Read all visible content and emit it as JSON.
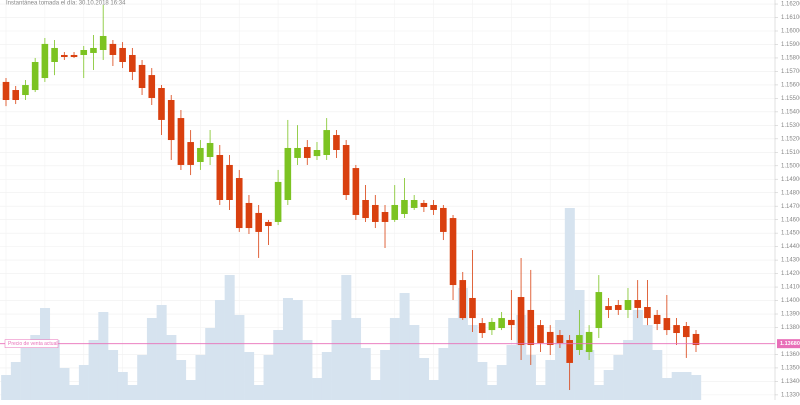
{
  "chart_data": {
    "type": "candlestick",
    "title": "Instantánea tomada el día: 30.10.2018 16:34",
    "up_color": "#7cc322",
    "down_color": "#d9400f",
    "volume_color": "#d6e3ef",
    "grid": true,
    "ylim": [
      1.13262,
      1.1623
    ],
    "volume_ylim": [
      0,
      200
    ],
    "yticks": [
      {
        "value": 1.162,
        "label": "1.16200"
      },
      {
        "value": 1.161,
        "label": "1.16100"
      },
      {
        "value": 1.16,
        "label": "1.16000"
      },
      {
        "value": 1.159,
        "label": "1.15900"
      },
      {
        "value": 1.158,
        "label": "1.15800"
      },
      {
        "value": 1.157,
        "label": "1.15700"
      },
      {
        "value": 1.156,
        "label": "1.15600"
      },
      {
        "value": 1.155,
        "label": "1.15500"
      },
      {
        "value": 1.154,
        "label": "1.15400"
      },
      {
        "value": 1.153,
        "label": "1.15300"
      },
      {
        "value": 1.152,
        "label": "1.15200"
      },
      {
        "value": 1.151,
        "label": "1.15100"
      },
      {
        "value": 1.15,
        "label": "1.15000"
      },
      {
        "value": 1.149,
        "label": "1.14900"
      },
      {
        "value": 1.148,
        "label": "1.14800"
      },
      {
        "value": 1.147,
        "label": "1.14700"
      },
      {
        "value": 1.146,
        "label": "1.14600"
      },
      {
        "value": 1.145,
        "label": "1.14500"
      },
      {
        "value": 1.144,
        "label": "1.14400"
      },
      {
        "value": 1.143,
        "label": "1.14300"
      },
      {
        "value": 1.142,
        "label": "1.14200"
      },
      {
        "value": 1.141,
        "label": "1.14100"
      },
      {
        "value": 1.14,
        "label": "1.14000"
      },
      {
        "value": 1.139,
        "label": "1.13900"
      },
      {
        "value": 1.138,
        "label": "1.13800"
      },
      {
        "value": 1.136,
        "label": "1.13600"
      },
      {
        "value": 1.135,
        "label": "1.13500"
      },
      {
        "value": 1.134,
        "label": "1.13400"
      },
      {
        "value": 1.133,
        "label": "1.13300"
      }
    ],
    "current_price": {
      "name": "Precio de venta actual",
      "value": 1.1368,
      "label": "1.13680",
      "color": "#e86fb8"
    },
    "open": [
      1.15622,
      1.15562,
      1.15525,
      1.15562,
      1.15651,
      1.1577,
      1.15822,
      1.15822,
      1.15822,
      1.15837,
      1.15859,
      1.15904,
      1.15874,
      1.15822,
      1.15748,
      1.15673,
      1.15577,
      1.15488,
      1.15354,
      1.15176,
      1.15028,
      1.15065,
      1.1508,
      1.15006,
      1.14909,
      1.14724,
      1.1465,
      1.14583,
      1.14583,
      1.14746,
      1.15058,
      1.15139,
      1.15072,
      1.1508,
      1.15228,
      1.15154,
      1.14983,
      1.14746,
      1.14709,
      1.14657,
      1.14598,
      1.14642,
      1.14687,
      1.14724,
      1.14709,
      1.14687,
      1.14612,
      1.14152,
      1.14019,
      1.13833,
      1.13781,
      1.13796,
      1.13856,
      1.14026,
      1.1393,
      1.13818,
      1.13767,
      1.13744,
      1.13707,
      1.13633,
      1.13618,
      1.13796,
      1.13959,
      1.13967,
      1.1393,
      1.14004,
      1.13952,
      1.13893,
      1.1387,
      1.13818,
      1.13811,
      1.13752
    ],
    "high": [
      1.15651,
      1.15592,
      1.15636,
      1.158,
      1.15948,
      1.15933,
      1.15844,
      1.15844,
      1.15889,
      1.1597,
      1.16193,
      1.15933,
      1.15918,
      1.15874,
      1.15785,
      1.15725,
      1.15599,
      1.15525,
      1.15414,
      1.15265,
      1.15191,
      1.15265,
      1.15154,
      1.1508,
      1.14969,
      1.14783,
      1.14709,
      1.14598,
      1.14969,
      1.1534,
      1.15302,
      1.15191,
      1.15176,
      1.15354,
      1.15265,
      1.15191,
      1.15006,
      1.14857,
      1.14783,
      1.14709,
      1.14857,
      1.14909,
      1.14783,
      1.14746,
      1.14746,
      1.14709,
      1.14635,
      1.14212,
      1.14375,
      1.1387,
      1.1387,
      1.13915,
      1.14078,
      1.14316,
      1.14227,
      1.13856,
      1.13818,
      1.13781,
      1.13744,
      1.1393,
      1.13818,
      1.14189,
      1.14019,
      1.14004,
      1.14093,
      1.14152,
      1.14152,
      1.1393,
      1.14041,
      1.1387,
      1.13841,
      1.13781
    ],
    "low": [
      1.15443,
      1.15458,
      1.15488,
      1.15547,
      1.15622,
      1.15673,
      1.15785,
      1.158,
      1.15651,
      1.15711,
      1.15785,
      1.1574,
      1.15725,
      1.15636,
      1.15525,
      1.15451,
      1.15228,
      1.15043,
      1.14969,
      1.14931,
      1.14969,
      1.15006,
      1.14709,
      1.14672,
      1.14509,
      1.14494,
      1.14316,
      1.14412,
      1.1456,
      1.14709,
      1.15006,
      1.15006,
      1.15043,
      1.15043,
      1.15058,
      1.14746,
      1.14598,
      1.14583,
      1.14538,
      1.1439,
      1.14583,
      1.14612,
      1.14672,
      1.14657,
      1.14635,
      1.14449,
      1.14004,
      1.13856,
      1.13767,
      1.13722,
      1.13744,
      1.13781,
      1.13707,
      1.13559,
      1.13522,
      1.13618,
      1.13596,
      1.13648,
      1.13336,
      1.13596,
      1.13559,
      1.13722,
      1.1387,
      1.13893,
      1.1387,
      1.1387,
      1.13818,
      1.13781,
      1.13744,
      1.1367,
      1.13574,
      1.13618
    ],
    "close": [
      1.15488,
      1.15488,
      1.15599,
      1.1577,
      1.15904,
      1.15874,
      1.15807,
      1.15807,
      1.15859,
      1.15874,
      1.15963,
      1.15822,
      1.1577,
      1.15696,
      1.15577,
      1.15503,
      1.1534,
      1.15191,
      1.15006,
      1.15006,
      1.15132,
      1.15169,
      1.14746,
      1.14746,
      1.14538,
      1.14538,
      1.14509,
      1.14553,
      1.1488,
      1.15132,
      1.15132,
      1.15058,
      1.15117,
      1.15265,
      1.15117,
      1.14783,
      1.14635,
      1.14612,
      1.14583,
      1.14583,
      1.14709,
      1.14746,
      1.14746,
      1.14694,
      1.14672,
      1.14509,
      1.14115,
      1.1387,
      1.1387,
      1.13759,
      1.13841,
      1.1387,
      1.13818,
      1.1367,
      1.1367,
      1.13685,
      1.1367,
      1.13685,
      1.13537,
      1.13744,
      1.13767,
      1.14063,
      1.1393,
      1.1393,
      1.14004,
      1.13945,
      1.1387,
      1.13826,
      1.13781,
      1.13759,
      1.13729,
      1.1367
    ],
    "volume": [
      25,
      38,
      52,
      65,
      92,
      60,
      32,
      15,
      35,
      60,
      88,
      50,
      28,
      15,
      45,
      82,
      95,
      65,
      40,
      20,
      45,
      72,
      100,
      125,
      85,
      48,
      15,
      45,
      70,
      102,
      100,
      60,
      22,
      48,
      80,
      125,
      82,
      52,
      20,
      50,
      82,
      107,
      75,
      42,
      20,
      52,
      82,
      112,
      75,
      38,
      15,
      35,
      55,
      85,
      45,
      15,
      40,
      80,
      192,
      110,
      50,
      15,
      30,
      45,
      60,
      90,
      75,
      50,
      22,
      28,
      28,
      25
    ]
  }
}
